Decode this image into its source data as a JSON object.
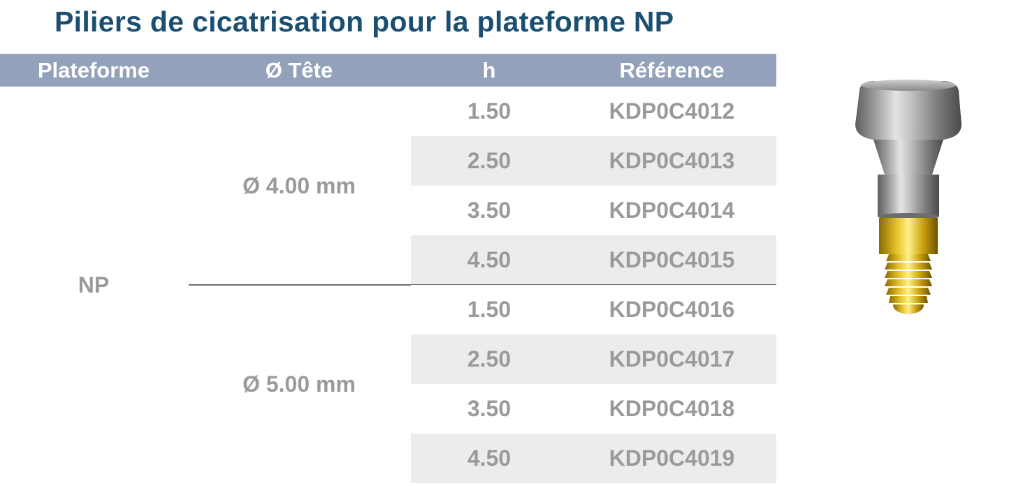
{
  "title": "Piliers de cicatrisation pour la plateforme NP",
  "colors": {
    "title": "#1b4f72",
    "header_bg": "#93a2ba",
    "header_text": "#ffffff",
    "cell_text": "#9a9a9a",
    "row_shade": "#ececec",
    "divider": "#6e6e6e"
  },
  "table": {
    "headers": {
      "plateforme": "Plateforme",
      "tete": "Ø Tête",
      "h": "h",
      "reference": "Référence"
    },
    "plateforme": "NP",
    "groups": [
      {
        "tete": "Ø 4.00 mm",
        "rows": [
          {
            "h": "1.50",
            "ref": "KDP0C4012"
          },
          {
            "h": "2.50",
            "ref": "KDP0C4013"
          },
          {
            "h": "3.50",
            "ref": "KDP0C4014"
          },
          {
            "h": "4.50",
            "ref": "KDP0C4015"
          }
        ]
      },
      {
        "tete": "Ø 5.00 mm",
        "rows": [
          {
            "h": "1.50",
            "ref": "KDP0C4016"
          },
          {
            "h": "2.50",
            "ref": "KDP0C4017"
          },
          {
            "h": "3.50",
            "ref": "KDP0C4018"
          },
          {
            "h": "4.50",
            "ref": "KDP0C4019"
          }
        ]
      }
    ]
  },
  "image": {
    "icon": "healing-abutment-icon"
  }
}
